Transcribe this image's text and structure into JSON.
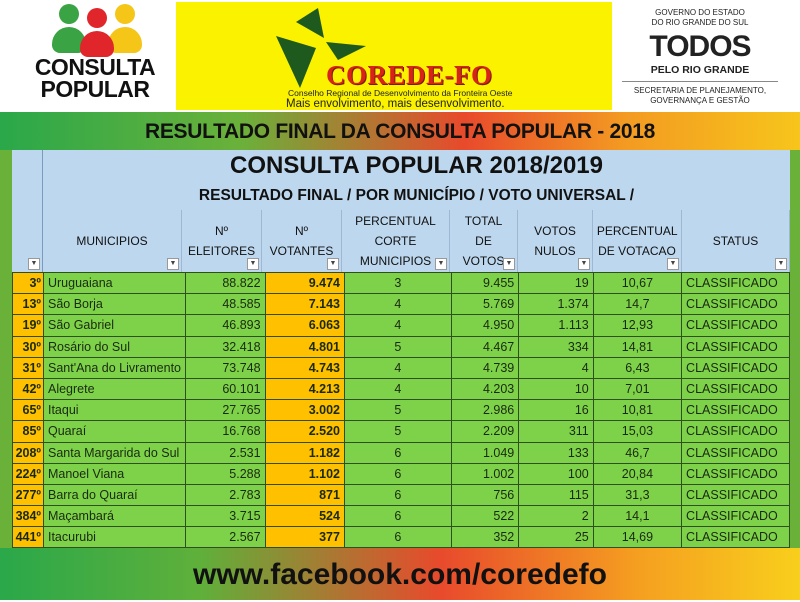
{
  "header": {
    "consulta_logo": [
      "CONSULTA",
      "POPULAR"
    ],
    "corede": {
      "name": "COREDE-FO",
      "subtitle": "Conselho Regional de Desenvolvimento da Fronteira Oeste",
      "slogan": "Mais envolvimento, mais desenvolvimento."
    },
    "gov": {
      "line1": "GOVERNO DO ESTADO",
      "line2": "DO RIO GRANDE DO SUL",
      "brand": "TODOS",
      "brand_sub": "PELO RIO GRANDE",
      "sec1": "SECRETARIA DE PLANEJAMENTO,",
      "sec2": "GOVERNANÇA E GESTÃO"
    }
  },
  "banner": "RESULTADO FINAL DA CONSULTA POPULAR - 2018",
  "sheet": {
    "title": "CONSULTA POPULAR 2018/2019",
    "subtitle": "RESULTADO FINAL / POR MUNICÍPIO / VOTO UNIVERSAL /",
    "columns": [
      "MUNICIPIOS",
      "Nº ELEITORES",
      "Nº VOTANTES",
      "PERCENTUAL CORTE MUNICIPIOS",
      "TOTAL DE VOTOS",
      "VOTOS NULOS",
      "PERCENTUAL DE VOTACAO",
      "STATUS"
    ],
    "rows": [
      [
        "3º",
        "Uruguaiana",
        "88.822",
        "9.474",
        "3",
        "9.455",
        "19",
        "10,67",
        "CLASSIFICADO"
      ],
      [
        "13º",
        "São Borja",
        "48.585",
        "7.143",
        "4",
        "5.769",
        "1.374",
        "14,7",
        "CLASSIFICADO"
      ],
      [
        "19º",
        "São Gabriel",
        "46.893",
        "6.063",
        "4",
        "4.950",
        "1.113",
        "12,93",
        "CLASSIFICADO"
      ],
      [
        "30º",
        "Rosário do Sul",
        "32.418",
        "4.801",
        "5",
        "4.467",
        "334",
        "14,81",
        "CLASSIFICADO"
      ],
      [
        "31º",
        "Sant'Ana do Livramento",
        "73.748",
        "4.743",
        "4",
        "4.739",
        "4",
        "6,43",
        "CLASSIFICADO"
      ],
      [
        "42º",
        "Alegrete",
        "60.101",
        "4.213",
        "4",
        "4.203",
        "10",
        "7,01",
        "CLASSIFICADO"
      ],
      [
        "65º",
        "Itaqui",
        "27.765",
        "3.002",
        "5",
        "2.986",
        "16",
        "10,81",
        "CLASSIFICADO"
      ],
      [
        "85º",
        "Quaraí",
        "16.768",
        "2.520",
        "5",
        "2.209",
        "311",
        "15,03",
        "CLASSIFICADO"
      ],
      [
        "208º",
        "Santa Margarida do Sul",
        "2.531",
        "1.182",
        "6",
        "1.049",
        "133",
        "46,7",
        "CLASSIFICADO"
      ],
      [
        "224º",
        "Manoel Viana",
        "5.288",
        "1.102",
        "6",
        "1.002",
        "100",
        "20,84",
        "CLASSIFICADO"
      ],
      [
        "277º",
        "Barra do Quaraí",
        "2.783",
        "871",
        "6",
        "756",
        "115",
        "31,3",
        "CLASSIFICADO"
      ],
      [
        "384º",
        "Maçambará",
        "3.715",
        "524",
        "6",
        "522",
        "2",
        "14,1",
        "CLASSIFICADO"
      ],
      [
        "441º",
        "Itacurubi",
        "2.567",
        "377",
        "6",
        "352",
        "25",
        "14,69",
        "CLASSIFICADO"
      ]
    ]
  },
  "footer": "www.facebook.com/coredefo",
  "colors": {
    "green_cell": "#7ed24a",
    "orange_cell": "#ffc000",
    "header_blue": "#bdd7ee",
    "corede_yellow": "#fbf200",
    "corede_red": "#d8231b"
  }
}
